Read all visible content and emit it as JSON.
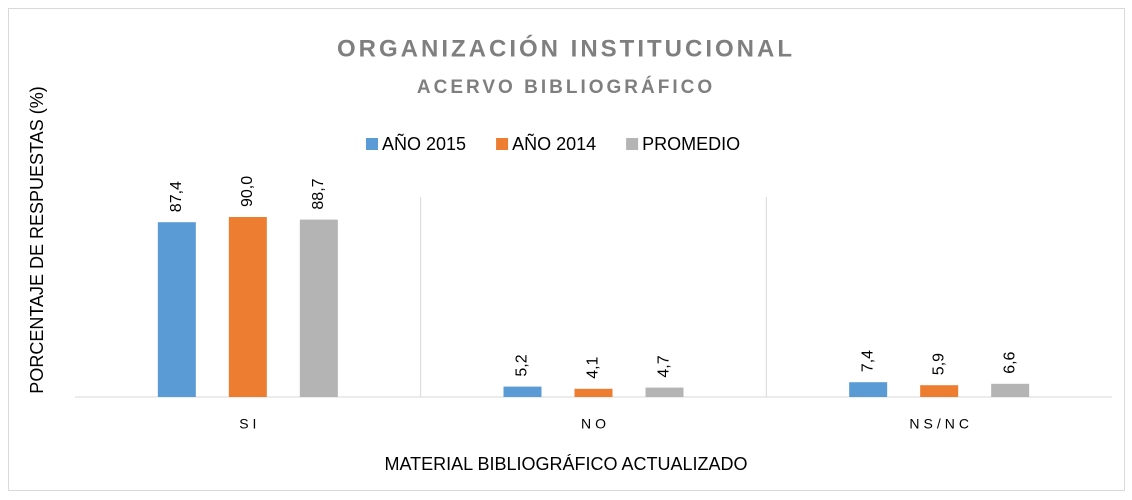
{
  "chart_data": {
    "type": "bar",
    "title": "ORGANIZACIÓN INSTITUCIONAL",
    "subtitle": "ACERVO BIBLIOGRÁFICO",
    "xlabel": "MATERIAL BIBLIOGRÁFICO ACTUALIZADO",
    "ylabel": "PORCENTAJE DE RESPUESTAS  (%)",
    "categories": [
      "SI",
      "NO",
      "NS/NC"
    ],
    "series": [
      {
        "name": "AÑO 2015",
        "color": "#5b9bd5",
        "values": [
          87.4,
          5.2,
          7.4
        ],
        "value_labels": [
          "87,4",
          "5,2",
          "7,4"
        ]
      },
      {
        "name": "AÑO 2014",
        "color": "#ed7d31",
        "values": [
          90.0,
          4.1,
          5.9
        ],
        "value_labels": [
          "90,0",
          "4,1",
          "5,9"
        ]
      },
      {
        "name": "PROMEDIO",
        "color": "#b4b4b4",
        "values": [
          88.7,
          4.7,
          6.6
        ],
        "value_labels": [
          "88,7",
          "4,7",
          "6,6"
        ]
      }
    ],
    "ylim": [
      0,
      100
    ],
    "legend": "top"
  }
}
